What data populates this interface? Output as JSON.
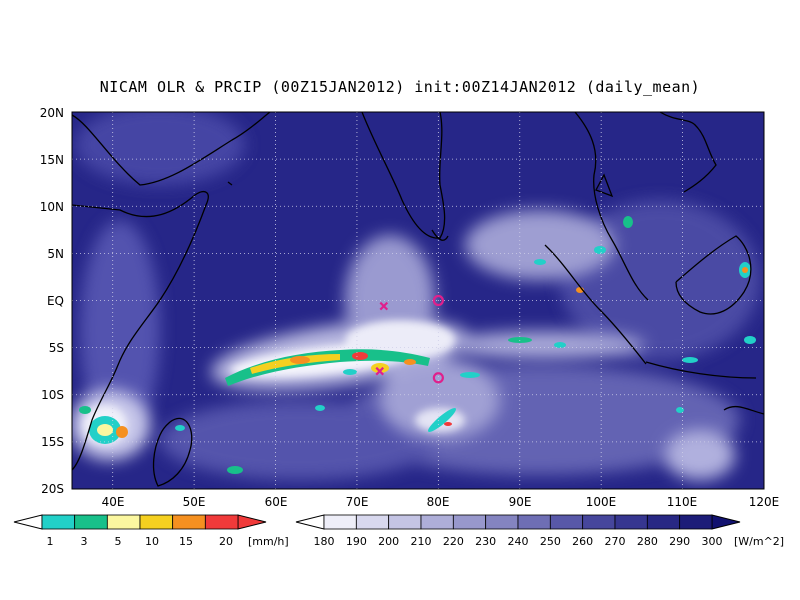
{
  "title": "NICAM OLR & PRCIP (00Z15JAN2012) init:00Z14JAN2012 (daily_mean)",
  "map": {
    "lat_labels": [
      "20N",
      "15N",
      "10N",
      "5N",
      "EQ",
      "5S",
      "10S",
      "15S",
      "20S"
    ],
    "lon_labels": [
      "40E",
      "50E",
      "60E",
      "70E",
      "80E",
      "90E",
      "100E",
      "110E",
      "120E"
    ],
    "lon_range": [
      35,
      120
    ],
    "lat_range": [
      -20,
      20
    ],
    "grid": "dotted",
    "markers": [
      {
        "type": "x",
        "lon": 73.3,
        "lat": -0.6,
        "color": "#e0208c"
      },
      {
        "type": "circle",
        "lon": 80.0,
        "lat": 0.0,
        "color": "#e0208c"
      },
      {
        "type": "x",
        "lon": 72.8,
        "lat": -7.5,
        "color": "#e0208c"
      },
      {
        "type": "circle",
        "lon": 80.0,
        "lat": -8.2,
        "color": "#e0208c"
      }
    ]
  },
  "precip_colorbar": {
    "ticks": [
      "1",
      "3",
      "5",
      "10",
      "15",
      "20"
    ],
    "unit": "[mm/h]",
    "colors": [
      "#22d0c8",
      "#18c08a",
      "#fbf7a0",
      "#f5d020",
      "#f59020",
      "#f03a3a"
    ]
  },
  "olr_colorbar": {
    "ticks": [
      "180",
      "190",
      "200",
      "210",
      "220",
      "230",
      "240",
      "250",
      "260",
      "270",
      "280",
      "290",
      "300"
    ],
    "unit": "[W/m^2]",
    "colors": [
      "#ffffff",
      "#eeeef8",
      "#d8d8ee",
      "#c4c4e4",
      "#aeaed8",
      "#9898cc",
      "#8484c0",
      "#6e6eb4",
      "#5858a8",
      "#46469c",
      "#363690",
      "#282884",
      "#1c1c78",
      "#121270"
    ]
  }
}
